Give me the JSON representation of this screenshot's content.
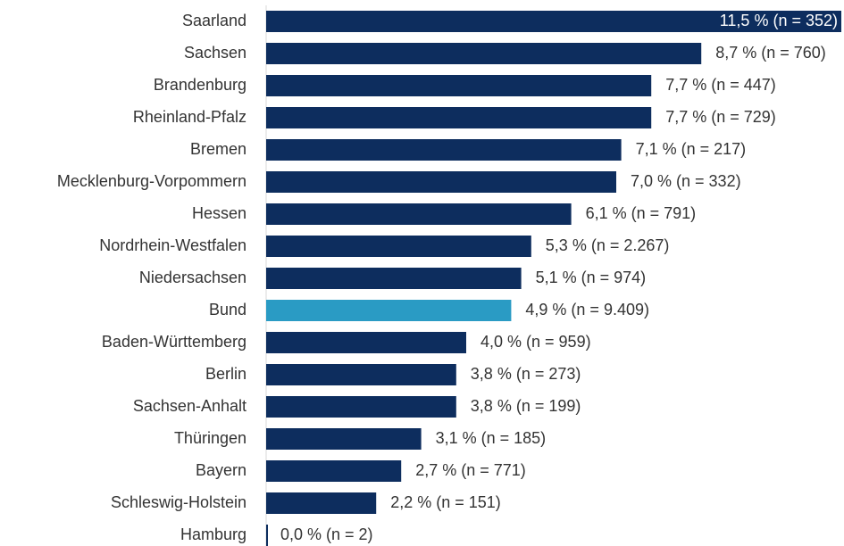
{
  "chart_data": {
    "type": "bar",
    "orientation": "horizontal",
    "categories": [
      "Saarland",
      "Sachsen",
      "Brandenburg",
      "Rheinland-Pfalz",
      "Bremen",
      "Mecklenburg-Vorpommern",
      "Hessen",
      "Nordrhein-Westfalen",
      "Niedersachsen",
      "Bund",
      "Baden-Württemberg",
      "Berlin",
      "Sachsen-Anhalt",
      "Thüringen",
      "Bayern",
      "Schleswig-Holstein",
      "Hamburg"
    ],
    "values": [
      11.5,
      8.7,
      7.7,
      7.7,
      7.1,
      7.0,
      6.1,
      5.3,
      5.1,
      4.9,
      4.0,
      3.8,
      3.8,
      3.1,
      2.7,
      2.2,
      0.0
    ],
    "value_labels": [
      "11,5 % (n = 352)",
      "8,7 % (n = 760)",
      "7,7 % (n = 447)",
      "7,7 % (n = 729)",
      "7,1 % (n = 217)",
      "7,0 % (n = 332)",
      "6,1 % (n = 791)",
      "5,3 % (n = 2.267)",
      "5,1 % (n = 974)",
      "4,9 % (n = 9.409)",
      "4,0 % (n = 959)",
      "3,8 % (n = 273)",
      "3,8 % (n = 199)",
      "3,1 % (n = 185)",
      "2,7 % (n = 771)",
      "2,2 % (n = 151)",
      "0,0 % (n = 2)"
    ],
    "colors": [
      "#0d2d5e",
      "#0d2d5e",
      "#0d2d5e",
      "#0d2d5e",
      "#0d2d5e",
      "#0d2d5e",
      "#0d2d5e",
      "#0d2d5e",
      "#0d2d5e",
      "#2a9bc4",
      "#0d2d5e",
      "#0d2d5e",
      "#0d2d5e",
      "#0d2d5e",
      "#0d2d5e",
      "#0d2d5e",
      "#0d2d5e"
    ],
    "xlim": [
      0,
      11.5
    ]
  }
}
